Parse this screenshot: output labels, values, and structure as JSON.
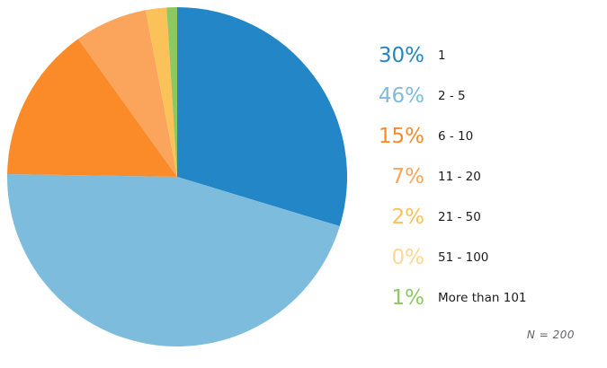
{
  "chart_data": {
    "type": "pie",
    "title": "",
    "categories": [
      "1",
      "2 - 5",
      "6 - 10",
      "11 - 20",
      "21 - 50",
      "51 - 100",
      "More than 101"
    ],
    "values": [
      30,
      46,
      15,
      7,
      2,
      0,
      1
    ],
    "percent_labels": [
      "30%",
      "46%",
      "15%",
      "7%",
      "2%",
      "0%",
      "1%"
    ],
    "colors": [
      "#2386c7",
      "#7dbcdc",
      "#fb8b28",
      "#fba55c",
      "#fcc25a",
      "#fdd795",
      "#8dc863"
    ],
    "start_angle_deg": 0,
    "direction": "clockwise",
    "legend_position": "right",
    "grid": false,
    "note": "N = 200"
  }
}
